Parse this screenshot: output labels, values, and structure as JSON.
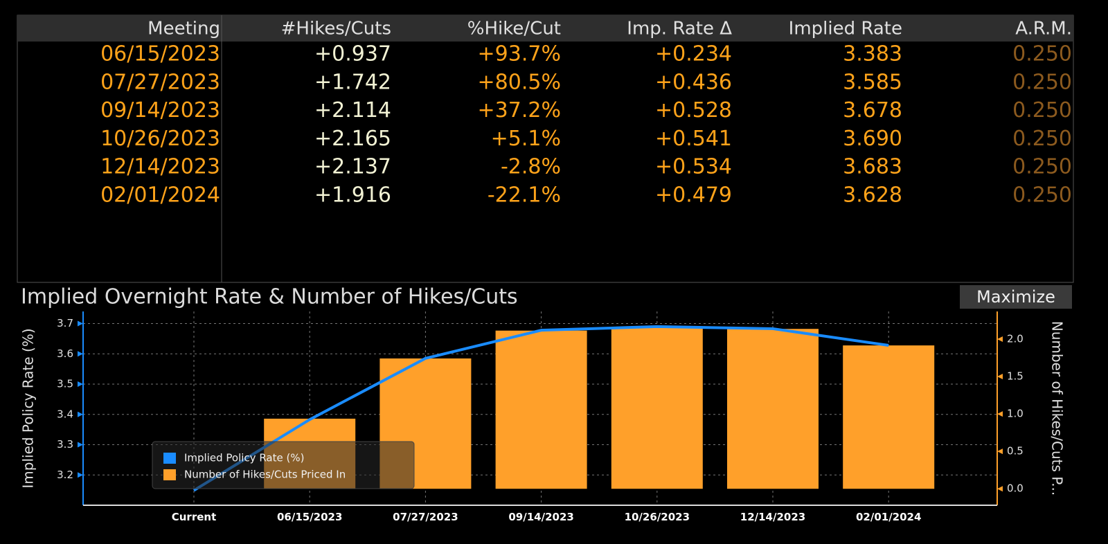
{
  "table": {
    "columns": [
      "Meeting",
      "#Hikes/Cuts",
      "%Hike/Cut",
      "Imp. Rate Δ",
      "Implied Rate",
      "A.R.M."
    ],
    "rows": [
      [
        "06/15/2023",
        "+0.937",
        "+93.7%",
        "+0.234",
        "3.383",
        "0.250"
      ],
      [
        "07/27/2023",
        "+1.742",
        "+80.5%",
        "+0.436",
        "3.585",
        "0.250"
      ],
      [
        "09/14/2023",
        "+2.114",
        "+37.2%",
        "+0.528",
        "3.678",
        "0.250"
      ],
      [
        "10/26/2023",
        "+2.165",
        "+5.1%",
        "+0.541",
        "3.690",
        "0.250"
      ],
      [
        "12/14/2023",
        "+2.137",
        "-2.8%",
        "+0.534",
        "3.683",
        "0.250"
      ],
      [
        "02/01/2024",
        "+1.916",
        "-22.1%",
        "+0.479",
        "3.628",
        "0.250"
      ]
    ]
  },
  "maximize_button": "Maximize",
  "chart_data": {
    "type": "bar_line",
    "title": "Implied Overnight Rate & Number of Hikes/Cuts",
    "ylabel": "Implied Policy Rate (%)",
    "y2label": "Number of Hikes/Cuts P...",
    "categories": [
      "Current",
      "06/15/2023",
      "07/27/2023",
      "09/14/2023",
      "10/26/2023",
      "12/14/2023",
      "02/01/2024"
    ],
    "series": [
      {
        "name": "Implied Policy Rate (%)",
        "type": "line",
        "color": "#1a8cff",
        "values": [
          3.149,
          3.383,
          3.585,
          3.678,
          3.69,
          3.683,
          3.628
        ]
      },
      {
        "name": "Number of Hikes/Cuts Priced In",
        "type": "bar",
        "axis": "y2",
        "color": "#ffa02a",
        "values": [
          null,
          0.937,
          1.742,
          2.114,
          2.165,
          2.137,
          1.916
        ]
      }
    ],
    "ylim": [
      3.1,
      3.74
    ],
    "yticks": [
      3.2,
      3.3,
      3.4,
      3.5,
      3.6,
      3.7
    ],
    "y2lim": [
      -0.22,
      2.37
    ],
    "y2ticks": [
      {
        "value": 0,
        "label": "0.0"
      },
      0.5,
      {
        "value": 1,
        "label": "1.0"
      },
      1.5,
      {
        "value": 2,
        "label": "2.0"
      }
    ],
    "grid": true
  }
}
